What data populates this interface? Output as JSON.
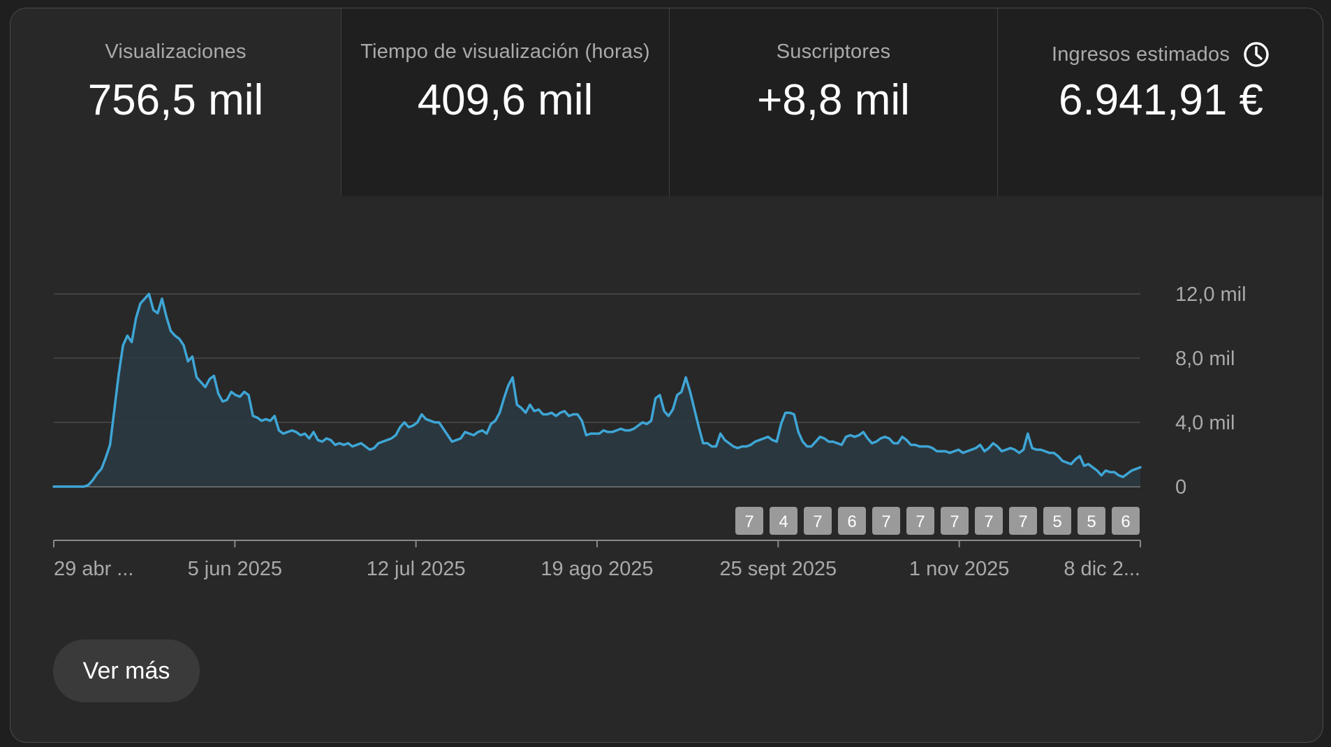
{
  "tabs": [
    {
      "label": "Visualizaciones",
      "value": "756,5 mil",
      "active": true
    },
    {
      "label": "Tiempo de visualización (horas)",
      "value": "409,6 mil",
      "active": false
    },
    {
      "label": "Suscriptores",
      "value": "+8,8 mil",
      "active": false
    },
    {
      "label": "Ingresos estimados",
      "value": "6.941,91 €",
      "active": false,
      "icon": "clock-icon"
    }
  ],
  "button": {
    "label": "Ver más"
  },
  "colors": {
    "line": "#3ea6d6",
    "area": "#2b3a42",
    "grid": "#4a4a4a",
    "marker_bg": "#9a9a9a"
  },
  "chart_data": {
    "type": "area",
    "ylim": [
      0,
      12000
    ],
    "y_ticks": [
      "12,0 mil",
      "8,0 mil",
      "4,0 mil",
      "0"
    ],
    "y_tick_values": [
      12000,
      8000,
      4000,
      0
    ],
    "x_ticks": [
      "29 abr ...",
      "5 jun 2025",
      "12 jul 2025",
      "19 ago 2025",
      "25 sept 2025",
      "1 nov 2025",
      "8 dic 2..."
    ],
    "x_tick_days": [
      0,
      37,
      74,
      111,
      148,
      185,
      222
    ],
    "markers": [
      "7",
      "4",
      "7",
      "6",
      "7",
      "7",
      "7",
      "7",
      "7",
      "5",
      "5",
      "6"
    ],
    "x_start": "2025-04-29",
    "x_end": "2025-12-08",
    "values": [
      0,
      0,
      0,
      0,
      0,
      0,
      0,
      0,
      100,
      400,
      800,
      1100,
      1800,
      2600,
      4800,
      7000,
      8800,
      9400,
      9000,
      10500,
      11400,
      11700,
      12000,
      11000,
      10800,
      11700,
      10600,
      9700,
      9400,
      9200,
      8800,
      7800,
      8100,
      6800,
      6500,
      6200,
      6700,
      6900,
      5800,
      5300,
      5400,
      5900,
      5700,
      5600,
      5900,
      5700,
      4400,
      4300,
      4100,
      4200,
      4100,
      4400,
      3500,
      3300,
      3400,
      3500,
      3400,
      3200,
      3300,
      3000,
      3400,
      2900,
      2800,
      3000,
      2900,
      2600,
      2700,
      2600,
      2700,
      2500,
      2600,
      2700,
      2500,
      2300,
      2400,
      2700,
      2800,
      2900,
      3000,
      3200,
      3700,
      4000,
      3700,
      3800,
      4000,
      4500,
      4200,
      4100,
      4000,
      4000,
      3600,
      3200,
      2800,
      2900,
      3000,
      3400,
      3300,
      3200,
      3400,
      3500,
      3300,
      3900,
      4100,
      4600,
      5500,
      6300,
      6800,
      5100,
      4900,
      4600,
      5100,
      4700,
      4800,
      4500,
      4500,
      4600,
      4400,
      4600,
      4700,
      4400,
      4500,
      4500,
      4100,
      3200,
      3300,
      3300,
      3300,
      3500,
      3400,
      3400,
      3500,
      3600,
      3500,
      3500,
      3600,
      3800,
      4000,
      3900,
      4100,
      5500,
      5700,
      4700,
      4400,
      4800,
      5700,
      5900,
      6800,
      5900,
      4800,
      3700,
      2700,
      2700,
      2500,
      2500,
      3300,
      2900,
      2700,
      2500,
      2400,
      2500,
      2500,
      2600,
      2800,
      2900,
      3000,
      3100,
      2900,
      2800,
      3900,
      4600,
      4600,
      4500,
      3400,
      2800,
      2500,
      2500,
      2800,
      3100,
      3000,
      2800,
      2800,
      2700,
      2600,
      3100,
      3200,
      3100,
      3200,
      3400,
      3000,
      2700,
      2800,
      3000,
      3100,
      3000,
      2700,
      2700,
      3100,
      2900,
      2600,
      2600,
      2500,
      2500,
      2500,
      2400,
      2200,
      2200,
      2200,
      2100,
      2200,
      2300,
      2100,
      2200,
      2300,
      2400,
      2600,
      2200,
      2400,
      2700,
      2500,
      2200,
      2300,
      2400,
      2300,
      2100,
      2300,
      3300,
      2400,
      2300,
      2300,
      2200,
      2100,
      2100,
      1900,
      1600,
      1500,
      1400,
      1700,
      1900,
      1300,
      1400,
      1200,
      1000,
      700,
      1000,
      900,
      900,
      700,
      600,
      800,
      1000,
      1100,
      1200
    ]
  }
}
